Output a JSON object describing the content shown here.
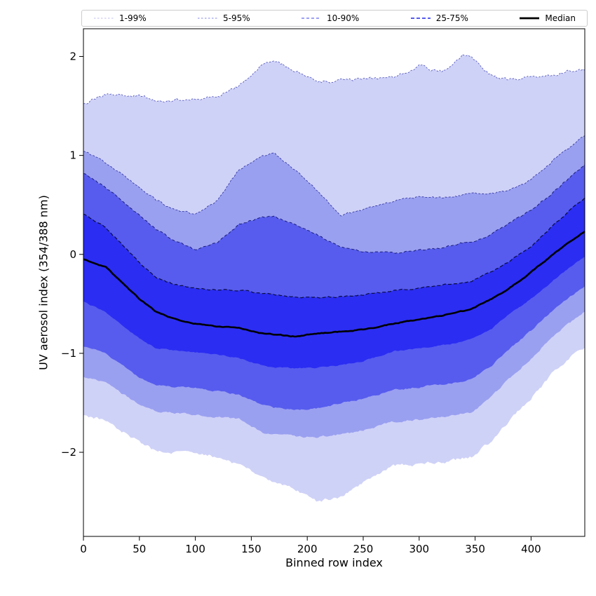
{
  "legend": {
    "items": [
      {
        "label": "1-99%",
        "color": "#c9ccf4",
        "dash": "2.5,2.5",
        "lw": 1.2
      },
      {
        "label": "5-95%",
        "color": "#9aa0ef",
        "dash": "2.5,2.5",
        "lw": 1.2
      },
      {
        "label": "10-90%",
        "color": "#7e84f4",
        "dash": "4,3",
        "lw": 1.4
      },
      {
        "label": "25-75%",
        "color": "#565bf0",
        "dash": "5,3",
        "lw": 1.9
      },
      {
        "label": "Median",
        "color": "#000000",
        "dash": "",
        "lw": 2.8
      }
    ]
  },
  "axes": {
    "xlabel": "Binned row index",
    "ylabel": "UV aerosol index (354/388 nm)",
    "xticks": [
      0,
      50,
      100,
      150,
      200,
      250,
      300,
      350,
      400
    ],
    "yticks": [
      2,
      1,
      0,
      -1,
      -2
    ],
    "ytick_labels": [
      "2",
      "1",
      "0",
      "−1",
      "−2"
    ]
  },
  "chart_data": {
    "type": "area",
    "title": "",
    "xlabel": "Binned row index",
    "ylabel": "UV aerosol index (354/388 nm)",
    "xlim": [
      0,
      448
    ],
    "ylim": [
      -2.85,
      2.28
    ],
    "grid": false,
    "legend_position": "top",
    "x": [
      0,
      20,
      50,
      65,
      80,
      100,
      120,
      139,
      160,
      170,
      190,
      208,
      230,
      250,
      277,
      300,
      320,
      340,
      347,
      365,
      380,
      400,
      420,
      435,
      448
    ],
    "series": [
      {
        "name": "p1",
        "noise": 4.0,
        "values": [
          -1.62,
          -1.68,
          -1.9,
          -1.99,
          -2.0,
          -2.0,
          -2.05,
          -2.12,
          -2.25,
          -2.31,
          -2.38,
          -2.5,
          -2.45,
          -2.3,
          -2.13,
          -2.12,
          -2.1,
          -2.06,
          -2.04,
          -1.88,
          -1.69,
          -1.45,
          -1.2,
          -1.05,
          -0.94
        ]
      },
      {
        "name": "p5",
        "noise": 2.4,
        "values": [
          -1.24,
          -1.3,
          -1.52,
          -1.59,
          -1.6,
          -1.62,
          -1.64,
          -1.66,
          -1.8,
          -1.82,
          -1.84,
          -1.85,
          -1.82,
          -1.78,
          -1.69,
          -1.67,
          -1.64,
          -1.61,
          -1.6,
          -1.44,
          -1.26,
          -1.05,
          -0.82,
          -0.69,
          -0.58
        ]
      },
      {
        "name": "p10",
        "noise": 2.0,
        "values": [
          -0.93,
          -1.0,
          -1.25,
          -1.32,
          -1.34,
          -1.35,
          -1.38,
          -1.42,
          -1.52,
          -1.55,
          -1.57,
          -1.56,
          -1.5,
          -1.46,
          -1.37,
          -1.34,
          -1.31,
          -1.28,
          -1.26,
          -1.12,
          -0.96,
          -0.77,
          -0.56,
          -0.43,
          -0.32
        ]
      },
      {
        "name": "p25",
        "noise": 1.5,
        "values": [
          -0.48,
          -0.58,
          -0.85,
          -0.95,
          -0.97,
          -0.99,
          -1.01,
          -1.05,
          -1.12,
          -1.14,
          -1.15,
          -1.15,
          -1.12,
          -1.08,
          -0.98,
          -0.95,
          -0.92,
          -0.88,
          -0.86,
          -0.75,
          -0.61,
          -0.45,
          -0.26,
          -0.13,
          -0.02
        ]
      },
      {
        "name": "median",
        "noise": 1.0,
        "values": [
          -0.05,
          -0.13,
          -0.45,
          -0.58,
          -0.65,
          -0.7,
          -0.73,
          -0.74,
          -0.8,
          -0.81,
          -0.83,
          -0.8,
          -0.78,
          -0.76,
          -0.7,
          -0.66,
          -0.62,
          -0.57,
          -0.55,
          -0.45,
          -0.35,
          -0.18,
          0.0,
          0.13,
          0.23
        ]
      },
      {
        "name": "p75",
        "noise": 1.5,
        "values": [
          0.41,
          0.27,
          -0.08,
          -0.24,
          -0.3,
          -0.34,
          -0.36,
          -0.36,
          -0.4,
          -0.41,
          -0.43,
          -0.44,
          -0.43,
          -0.41,
          -0.37,
          -0.34,
          -0.31,
          -0.28,
          -0.27,
          -0.17,
          -0.07,
          0.08,
          0.3,
          0.45,
          0.57
        ]
      },
      {
        "name": "p90",
        "noise": 2.0,
        "values": [
          0.82,
          0.68,
          0.4,
          0.25,
          0.15,
          0.04,
          0.12,
          0.3,
          0.38,
          0.38,
          0.3,
          0.2,
          0.08,
          0.03,
          0.01,
          0.04,
          0.06,
          0.12,
          0.13,
          0.2,
          0.31,
          0.45,
          0.63,
          0.78,
          0.91
        ]
      },
      {
        "name": "p95",
        "noise": 2.4,
        "values": [
          1.05,
          0.92,
          0.68,
          0.55,
          0.46,
          0.4,
          0.55,
          0.85,
          1.0,
          1.02,
          0.85,
          0.65,
          0.4,
          0.45,
          0.54,
          0.58,
          0.57,
          0.6,
          0.61,
          0.62,
          0.64,
          0.75,
          0.95,
          1.08,
          1.2
        ]
      },
      {
        "name": "p99",
        "noise": 4.0,
        "values": [
          1.52,
          1.62,
          1.6,
          1.55,
          1.56,
          1.58,
          1.6,
          1.7,
          1.93,
          1.96,
          1.85,
          1.74,
          1.75,
          1.78,
          1.78,
          1.9,
          1.85,
          2.02,
          1.99,
          1.8,
          1.76,
          1.8,
          1.82,
          1.86,
          1.86
        ]
      }
    ],
    "bands": [
      {
        "label": "1-99%",
        "lower": "p1",
        "upper": "p99",
        "fill": "#cfd2f7",
        "edge": "#5a5fc0",
        "dash": "2.5,2",
        "edge_width": 0.9
      },
      {
        "label": "5-95%",
        "lower": "p5",
        "upper": "p95",
        "fill": "#9aa0f0",
        "edge": "#383ea8",
        "dash": "3,2",
        "edge_width": 0.9
      },
      {
        "label": "10-90%",
        "lower": "p10",
        "upper": "p90",
        "fill": "#575cee",
        "edge": "#1a1d7a",
        "dash": "4,3",
        "edge_width": 1.0
      },
      {
        "label": "25-75%",
        "lower": "p25",
        "upper": "p75",
        "fill": "#2b2df2",
        "edge": "#0a0c3c",
        "dash": "5,3",
        "edge_width": 1.2
      }
    ],
    "median": {
      "label": "Median",
      "series": "median",
      "color": "#000000",
      "width": 2.6
    }
  }
}
